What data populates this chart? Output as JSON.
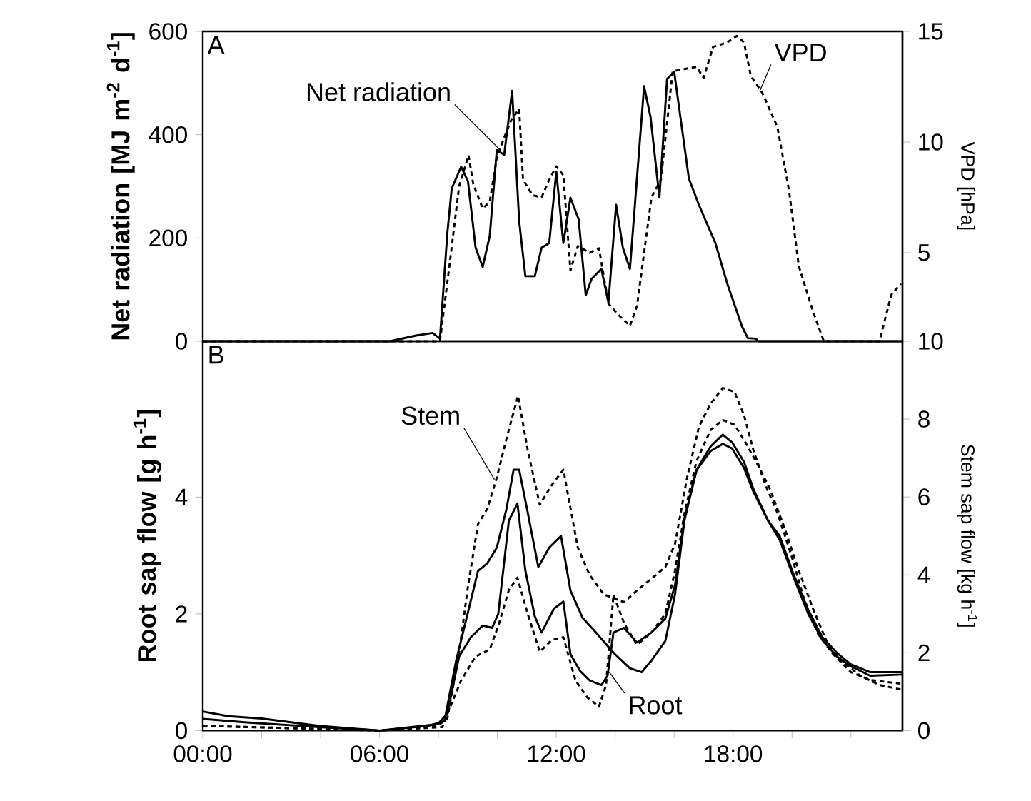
{
  "chart_data": [
    {
      "type": "line",
      "ylabel": "Net radiation [MJ m$^{-2}$ d$^{-1}$]",
      "y2label": "VPD [hPa]",
      "xlim": [
        0,
        23.75
      ],
      "ylim": [
        0,
        600
      ],
      "yticks": [
        0,
        200,
        400,
        600
      ],
      "y2lim": [
        1,
        15
      ],
      "y2ticks": [
        5,
        10,
        15
      ],
      "tick_labels": "y",
      "annotations": [
        "A",
        {
          "text": "Net radiation",
          "x": 10.1,
          "y": 370
        },
        {
          "text": "VPD",
          "x": 18.9,
          "y": 484
        }
      ],
      "series": [
        {
          "color": "#000000",
          "line_style": "solid",
          "x": [
            0,
            6.35,
            7.24,
            7.8,
            8.05,
            8.3,
            8.45,
            8.77,
            9.0,
            9.26,
            9.5,
            9.74,
            9.98,
            10.23,
            10.5,
            10.74,
            10.95,
            11.27,
            11.5,
            11.76,
            12.0,
            12.24,
            12.48,
            12.76,
            13.0,
            13.2,
            13.53,
            13.77,
            14.03,
            14.26,
            14.5,
            14.98,
            15.2,
            15.5,
            15.76,
            16.0,
            16.5,
            16.84,
            17.4,
            17.8,
            18.3,
            18.5,
            18.77,
            18.85,
            23.74
          ],
          "values": [
            0,
            0,
            11,
            16,
            5,
            209,
            296,
            338,
            310,
            181,
            144,
            204,
            370,
            361,
            485,
            232,
            126,
            126,
            181,
            190,
            328,
            190,
            278,
            236,
            89,
            121,
            140,
            75,
            264,
            181,
            140,
            494,
            434,
            278,
            508,
            522,
            315,
            264,
            190,
            112,
            29,
            6,
            5,
            0,
            0
          ]
        },
        {
          "axis": "y2",
          "color": "#000000",
          "line_style": "dotted",
          "x": [
            0,
            8.05,
            8.37,
            8.7,
            9.02,
            9.18,
            9.5,
            9.74,
            9.98,
            10.23,
            10.47,
            10.74,
            10.87,
            11.19,
            11.5,
            11.76,
            12.0,
            12.24,
            12.48,
            12.73,
            13.13,
            13.45,
            13.77,
            14.1,
            14.5,
            14.74,
            15.23,
            15.55,
            15.95,
            16.35,
            16.76,
            17.0,
            17.32,
            17.8,
            18.13,
            18.37,
            18.6,
            19.0,
            19.5,
            19.9,
            20.23,
            20.7,
            21.08,
            22.97,
            23.37,
            23.7
          ],
          "values": [
            1,
            1,
            4.4,
            8.0,
            9.4,
            8.1,
            7.0,
            7.3,
            9.3,
            10.2,
            11.0,
            11.5,
            8.3,
            7.6,
            7.5,
            8.3,
            8.9,
            8.5,
            4.2,
            5.3,
            5.0,
            5.2,
            2.7,
            2.2,
            1.7,
            2.6,
            7.5,
            8.3,
            13.2,
            13.3,
            13.4,
            12.9,
            14.3,
            14.5,
            14.8,
            14.5,
            13.0,
            12.2,
            10.7,
            7.8,
            4.4,
            2.4,
            1,
            1,
            3.1,
            3.6
          ]
        }
      ]
    },
    {
      "type": "line",
      "ylabel": "Root sap flow [g h$^{-1}$]",
      "y2label": "Stem sap flow [kg h$^{-1}$]",
      "xlim": [
        0,
        23.75
      ],
      "ylim": [
        0,
        6.67
      ],
      "yticks": [
        0,
        2,
        4
      ],
      "y2lim": [
        0,
        10
      ],
      "y2ticks": [
        0,
        2,
        4,
        6,
        8,
        10
      ],
      "xticks": [
        {
          "value": 0,
          "label": "00:00"
        },
        {
          "value": 2,
          "label": null
        },
        {
          "value": 4,
          "label": null
        },
        {
          "value": 6,
          "label": "06:00"
        },
        {
          "value": 8,
          "label": null
        },
        {
          "value": 10,
          "label": null
        },
        {
          "value": 12,
          "label": "12:00"
        },
        {
          "value": 14,
          "label": null
        },
        {
          "value": 16,
          "label": null
        },
        {
          "value": 18,
          "label": "18:00"
        },
        {
          "value": 20,
          "label": null
        },
        {
          "value": 22,
          "label": null
        }
      ],
      "annotations": [
        "B",
        {
          "text": "Stem",
          "x": 9.9,
          "y": 4.3
        },
        {
          "text": "Root",
          "x": 13.8,
          "y": 1.0
        }
      ],
      "series": [
        {
          "axis": "y2",
          "color": "#000000",
          "line_style": "dotted",
          "x": [
            0,
            3.1,
            6.0,
            7.97,
            8.3,
            8.7,
            9.0,
            9.34,
            9.66,
            9.98,
            10.31,
            10.7,
            11.03,
            11.44,
            11.84,
            12.24,
            12.73,
            13.13,
            13.61,
            13.94,
            14.3,
            14.74,
            15.23,
            15.7,
            16.03,
            16.44,
            16.84,
            17.24,
            17.65,
            18.05,
            18.37,
            18.69,
            19.1,
            19.5,
            19.98,
            20.4,
            20.87,
            21.35,
            22.0,
            22.65,
            23.74
          ],
          "values": [
            0.12,
            0.06,
            0,
            0.12,
            0.31,
            2.0,
            3.7,
            5.3,
            5.7,
            6.5,
            7.5,
            8.6,
            7.2,
            5.8,
            6.3,
            6.7,
            4.7,
            4.0,
            3.5,
            3.4,
            3.3,
            3.6,
            3.9,
            4.2,
            4.8,
            6.5,
            7.8,
            8.4,
            8.8,
            8.7,
            8.1,
            7.2,
            6.3,
            5.6,
            4.5,
            3.4,
            2.5,
            2.0,
            1.5,
            1.3,
            1.2
          ]
        },
        {
          "axis": "y2",
          "color": "#000000",
          "line_style": "solid",
          "x": [
            0,
            0.87,
            2.0,
            3.94,
            6.0,
            7.65,
            8.2,
            8.6,
            9.02,
            9.34,
            9.66,
            9.98,
            10.31,
            10.55,
            10.74,
            11.03,
            11.39,
            11.76,
            12.16,
            12.48,
            12.89,
            13.37,
            13.94,
            14.5,
            14.9,
            15.23,
            15.7,
            16.03,
            16.35,
            16.76,
            17.24,
            17.65,
            17.97,
            18.37,
            18.69,
            19.18,
            19.58,
            20.06,
            20.55,
            21.03,
            21.52,
            22.0,
            22.65,
            23.74
          ],
          "values": [
            0.49,
            0.37,
            0.31,
            0.12,
            0,
            0.12,
            0.24,
            1.8,
            3.1,
            4.1,
            4.3,
            4.7,
            5.7,
            6.7,
            6.7,
            5.6,
            4.2,
            4.7,
            5.0,
            3.6,
            2.9,
            2.5,
            2.0,
            1.6,
            1.5,
            1.8,
            2.3,
            3.5,
            5.4,
            6.7,
            7.3,
            7.6,
            7.4,
            6.9,
            6.2,
            5.4,
            5.0,
            4.0,
            3.1,
            2.4,
            2.0,
            1.7,
            1.5,
            1.5
          ]
        },
        {
          "color": "#000000",
          "line_style": "solid",
          "x": [
            0,
            1.5,
            3.94,
            6.0,
            7.97,
            8.3,
            8.7,
            9.1,
            9.5,
            9.82,
            10.03,
            10.39,
            10.68,
            10.95,
            11.27,
            11.5,
            11.92,
            12.24,
            12.48,
            12.81,
            13.13,
            13.53,
            13.74,
            13.94,
            14.3,
            14.74,
            15.23,
            15.7,
            16.03,
            16.35,
            16.76,
            17.24,
            17.65,
            17.97,
            18.37,
            18.69,
            19.18,
            19.58,
            20.06,
            20.55,
            21.03,
            21.52,
            22.0,
            22.65,
            23.74
          ],
          "values": [
            0.2,
            0.14,
            0.06,
            0,
            0.11,
            0.29,
            1.27,
            1.6,
            1.8,
            1.76,
            2.0,
            3.6,
            3.89,
            2.74,
            1.96,
            1.68,
            2.09,
            2.21,
            1.31,
            1.02,
            0.86,
            0.78,
            0.94,
            1.68,
            1.76,
            1.51,
            1.68,
            1.92,
            2.49,
            3.64,
            4.46,
            4.79,
            4.91,
            4.83,
            4.5,
            4.09,
            3.6,
            3.27,
            2.62,
            2.0,
            1.55,
            1.27,
            1.1,
            0.94,
            0.96
          ]
        },
        {
          "color": "#000000",
          "line_style": "dotted",
          "x": [
            0,
            3.1,
            6.0,
            8.13,
            8.37,
            8.77,
            9.26,
            9.74,
            10.06,
            10.39,
            10.68,
            11.03,
            11.44,
            11.84,
            12.24,
            12.65,
            13.05,
            13.45,
            13.69,
            13.94,
            14.3,
            14.74,
            15.23,
            15.7,
            16.03,
            16.35,
            16.76,
            17.24,
            17.65,
            18.05,
            18.45,
            18.85,
            19.26,
            19.74,
            20.23,
            20.71,
            21.19,
            21.68,
            22.32,
            22.97,
            23.74
          ],
          "values": [
            0.08,
            0.04,
            0,
            0.06,
            0.37,
            0.86,
            1.27,
            1.39,
            1.84,
            2.41,
            2.62,
            2.0,
            1.35,
            1.55,
            1.6,
            0.86,
            0.57,
            0.41,
            0.78,
            2.33,
            1.84,
            1.47,
            1.68,
            2.0,
            2.74,
            3.72,
            4.62,
            5.15,
            5.32,
            5.24,
            4.91,
            4.54,
            4.13,
            3.48,
            2.74,
            2.09,
            1.51,
            1.19,
            0.94,
            0.78,
            0.7
          ]
        }
      ]
    }
  ]
}
